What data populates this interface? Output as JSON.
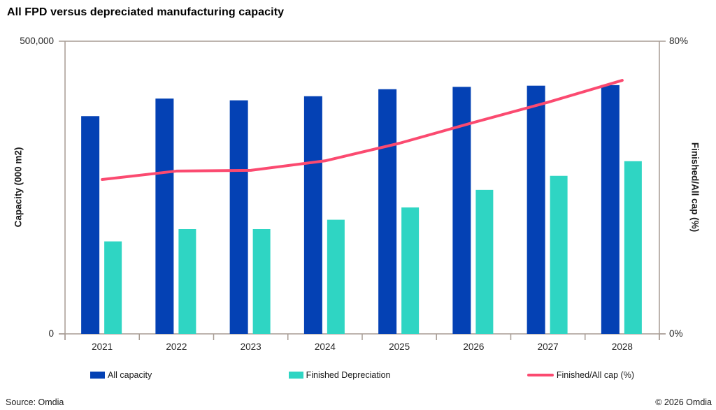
{
  "title": "All FPD versus depreciated manufacturing capacity",
  "axes": {
    "left": {
      "title": "Capacity (000 m2)",
      "max_label": "500,000",
      "min_label": "0"
    },
    "right": {
      "title": "Finished/All cap (%)",
      "max_label": "80%",
      "min_label": "0%"
    }
  },
  "legend": [
    {
      "label": "All capacity",
      "type": "rect",
      "color": "#0441B4"
    },
    {
      "label": "Finished Depreciation",
      "type": "rect",
      "color": "#2FD5C3"
    },
    {
      "label": "Finished/All cap (%)",
      "type": "line",
      "color": "#FB4A70"
    }
  ],
  "footer": {
    "source": "Source: Omdia",
    "copyright": "© 2026 Omdia"
  },
  "colors": {
    "all_capacity_bar": "#0441B4",
    "finished_depreciation_bar": "#2FD5C3",
    "ratio_line": "#FB4A70",
    "axis": "#A79C94",
    "text": "#262626"
  },
  "chart_data": {
    "type": "bar",
    "subtype": "grouped bars with secondary-axis line",
    "title": "All FPD versus depreciated manufacturing capacity",
    "categories": [
      "2021",
      "2022",
      "2023",
      "2024",
      "2025",
      "2026",
      "2027",
      "2028"
    ],
    "series": [
      {
        "name": "All capacity",
        "type": "bar",
        "axis": "left",
        "color": "#0441B4",
        "values": [
          372000,
          402000,
          399000,
          406000,
          418000,
          422000,
          424000,
          425000
        ]
      },
      {
        "name": "Finished Depreciation",
        "type": "bar",
        "axis": "left",
        "color": "#2FD5C3",
        "values": [
          158000,
          179000,
          179000,
          195000,
          216000,
          246000,
          270000,
          295000
        ]
      },
      {
        "name": "Finished/All cap (%)",
        "type": "line",
        "axis": "right",
        "color": "#FB4A70",
        "values": [
          42.2,
          44.5,
          44.7,
          47.3,
          52.1,
          57.8,
          63.3,
          69.3
        ]
      }
    ],
    "left_axis": {
      "label": "Capacity (000 m2)",
      "min": 0,
      "max": 500000,
      "tick_labels": [
        "0",
        "500,000"
      ]
    },
    "right_axis": {
      "label": "Finished/All cap (%)",
      "min": 0,
      "max": 80,
      "tick_labels": [
        "0%",
        "80%"
      ]
    },
    "xlabel": "",
    "grid": "top boundary line only, no interior gridlines",
    "legend_position": "bottom"
  }
}
